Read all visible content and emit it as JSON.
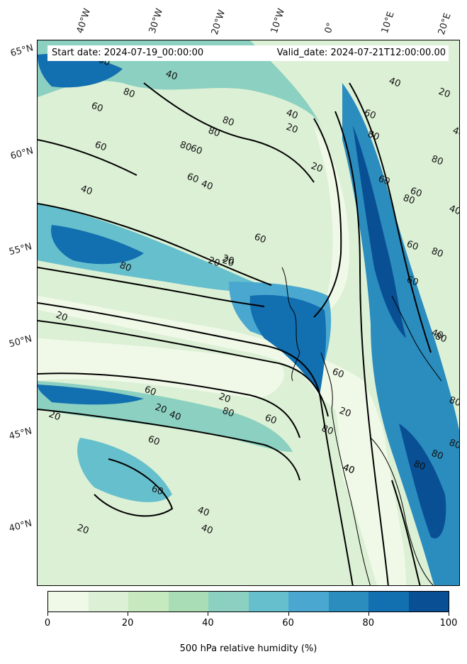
{
  "info": {
    "start_date": "Start date: 2024-07-19_00:00:00",
    "valid_date": "Valid_date: 2024-07-21T12:00:00.00"
  },
  "longitude_labels": [
    "40°W",
    "30°W",
    "20°W",
    "10°W",
    "0°",
    "10°E",
    "20°E"
  ],
  "latitude_labels": [
    "65°N",
    "60°N",
    "55°N",
    "50°N",
    "45°N",
    "40°N"
  ],
  "colorbar": {
    "title": "500 hPa relative humidity (%)",
    "ticks": [
      "0",
      "20",
      "40",
      "60",
      "80",
      "100"
    ],
    "range": [
      0,
      100
    ],
    "step": 10,
    "colors": [
      "#f0f9e8",
      "#dcf0d5",
      "#c7e9c0",
      "#a8ddb5",
      "#8bd0c0",
      "#66bfcc",
      "#4aa8d0",
      "#2b8cbe",
      "#126fb0",
      "#084f94"
    ]
  },
  "contour_labels": [
    "80",
    "40",
    "80",
    "60",
    "80",
    "60",
    "40",
    "20",
    "80",
    "80",
    "40",
    "60",
    "60",
    "40",
    "20",
    "60",
    "80",
    "40",
    "40",
    "20",
    "80",
    "60",
    "60",
    "80",
    "60",
    "80",
    "20",
    "20",
    "60",
    "20",
    "80",
    "60",
    "20",
    "60",
    "20",
    "40",
    "80",
    "60",
    "60",
    "80",
    "40",
    "60",
    "40",
    "20",
    "40",
    "80",
    "80",
    "80",
    "80",
    "80",
    "60",
    "40",
    "40",
    "20",
    "20",
    "20",
    "40"
  ]
}
